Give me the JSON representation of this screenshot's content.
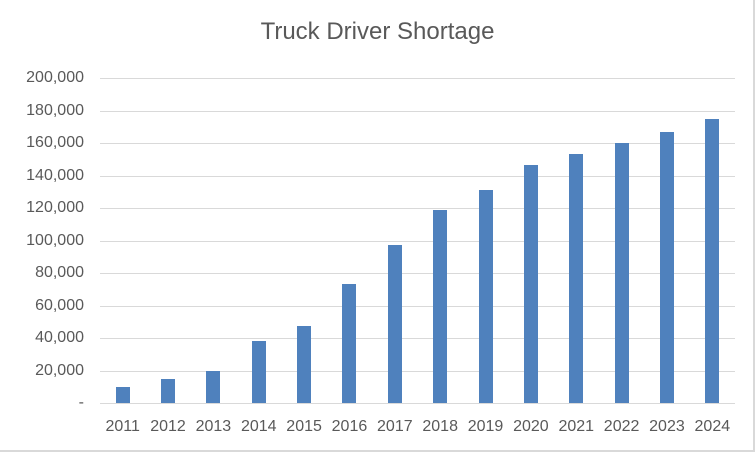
{
  "chart_data": {
    "type": "bar",
    "title": "Truck Driver Shortage",
    "xlabel": "",
    "ylabel": "",
    "categories": [
      "2011",
      "2012",
      "2013",
      "2014",
      "2015",
      "2016",
      "2017",
      "2018",
      "2019",
      "2020",
      "2021",
      "2022",
      "2023",
      "2024"
    ],
    "values": [
      10000,
      15000,
      20000,
      38000,
      47500,
      73500,
      97500,
      119000,
      131000,
      146500,
      153500,
      160000,
      167000,
      174500
    ],
    "ylim": [
      0,
      200000
    ],
    "yticks": [
      0,
      20000,
      40000,
      60000,
      80000,
      100000,
      120000,
      140000,
      160000,
      180000,
      200000
    ],
    "ytick_labels": [
      "-",
      "20,000",
      "40,000",
      "60,000",
      "80,000",
      "100,000",
      "120,000",
      "140,000",
      "160,000",
      "180,000",
      "200,000"
    ],
    "grid": true,
    "legend": null,
    "bar_color": "#4f81bd"
  }
}
